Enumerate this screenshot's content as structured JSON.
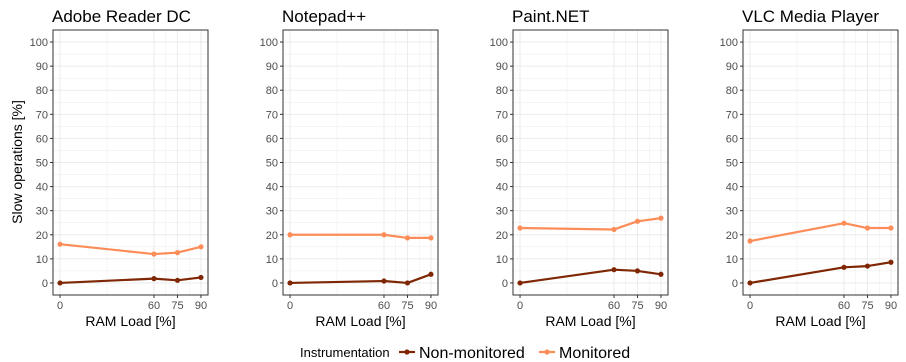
{
  "chart_data": [
    {
      "type": "line",
      "title": "Adobe Reader DC",
      "x": [
        0,
        60,
        75,
        90
      ],
      "series": [
        {
          "name": "Non-monitored",
          "values": [
            0,
            1.8,
            1.1,
            2.3
          ]
        },
        {
          "name": "Monitored",
          "values": [
            16.1,
            12.0,
            12.6,
            15.0
          ]
        }
      ]
    },
    {
      "type": "line",
      "title": "Notepad++",
      "x": [
        0,
        60,
        75,
        90
      ],
      "series": [
        {
          "name": "Non-monitored",
          "values": [
            0,
            0.8,
            0,
            3.6
          ]
        },
        {
          "name": "Monitored",
          "values": [
            20.0,
            20.0,
            18.7,
            18.7
          ]
        }
      ]
    },
    {
      "type": "line",
      "title": "Paint.NET",
      "x": [
        0,
        60,
        75,
        90
      ],
      "series": [
        {
          "name": "Non-monitored",
          "values": [
            0,
            5.5,
            5.0,
            3.6
          ]
        },
        {
          "name": "Monitored",
          "values": [
            22.8,
            22.2,
            25.6,
            26.9
          ]
        }
      ]
    },
    {
      "type": "line",
      "title": "VLC Media Player",
      "x": [
        0,
        60,
        75,
        90
      ],
      "series": [
        {
          "name": "Non-monitored",
          "values": [
            0,
            6.5,
            7.0,
            8.6
          ]
        },
        {
          "name": "Monitored",
          "values": [
            17.4,
            24.8,
            22.8,
            22.8
          ]
        }
      ]
    }
  ],
  "axes": {
    "xlabel": "RAM Load [%]",
    "ylabel": "Slow operations [%]",
    "ylim": [
      -5,
      105
    ],
    "yticks": [
      0,
      10,
      20,
      30,
      40,
      50,
      60,
      70,
      80,
      90,
      100
    ],
    "xticks": [
      0,
      60,
      75,
      90
    ],
    "grid": true
  },
  "legend": {
    "title": "Instrumentation",
    "placement": "bottom",
    "entries": [
      {
        "label": "Non-monitored",
        "color": "#7f2704"
      },
      {
        "label": "Monitored",
        "color": "#fc8d59"
      }
    ]
  },
  "colors": {
    "non_monitored": "#7f2704",
    "monitored": "#fc8d59",
    "grid": "#ebebeb",
    "panel_border": "#333333"
  }
}
